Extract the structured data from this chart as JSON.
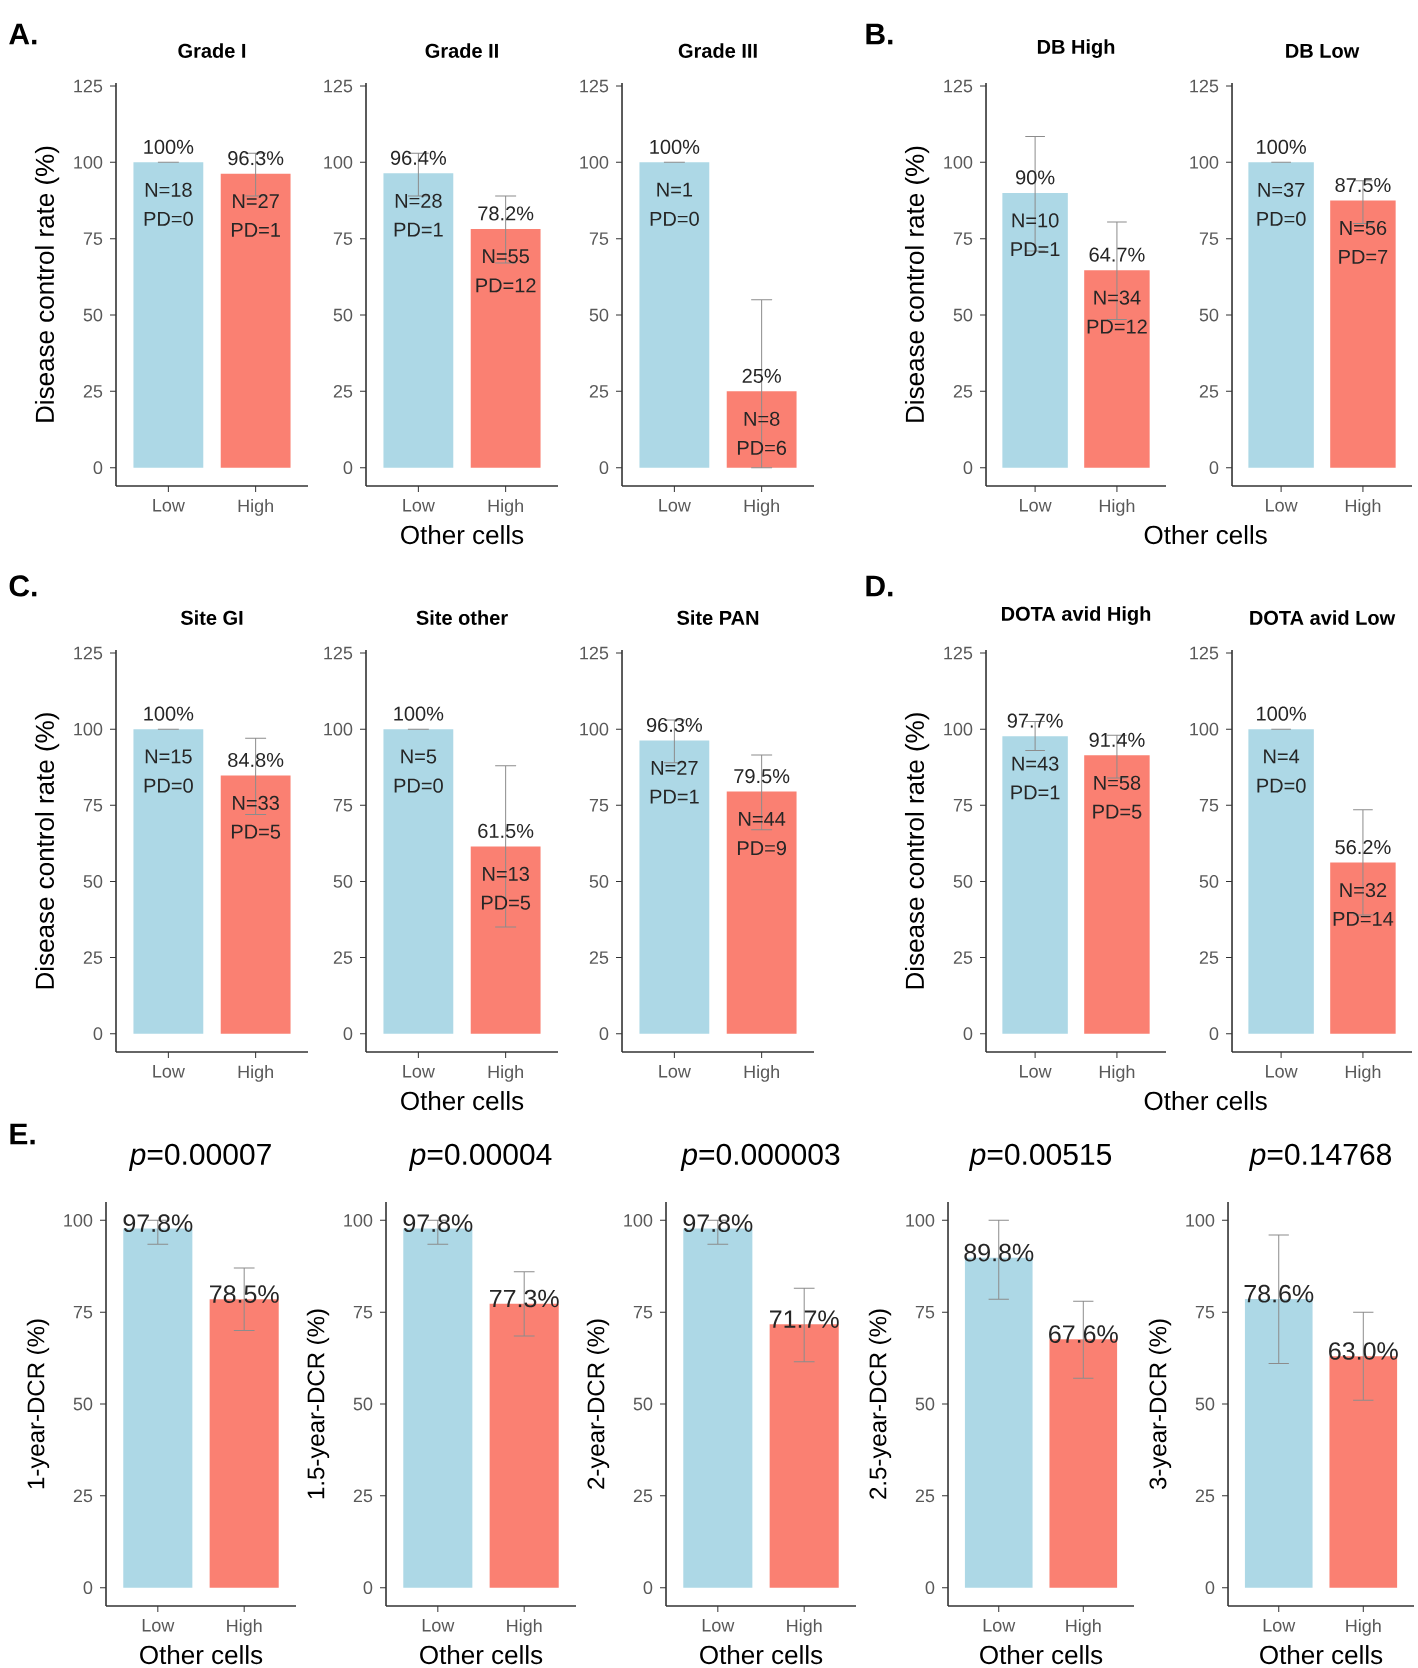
{
  "chart_data": [
    {
      "type": "bar",
      "title": "Grade I",
      "ylabel": "Disease control rate (%)",
      "categories": [
        "Low",
        "High"
      ],
      "values": [
        100,
        96.3
      ],
      "colors": [
        "#add8e6",
        "#fa8072"
      ],
      "errors": [
        [
          100,
          100
        ],
        [
          89,
          103
        ]
      ],
      "value_labels": [
        "100%",
        "96.3%"
      ],
      "ylim": [
        -6,
        126
      ],
      "yticks": [
        0,
        25,
        50,
        75,
        100,
        125
      ],
      "annotations": [
        "A.",
        {
          "text": "N=18",
          "x": "Low",
          "y": 100
        },
        {
          "text": "PD=0",
          "x": "Low",
          "y": 100
        },
        {
          "text": "N=27",
          "x": "High",
          "y": 96.3
        },
        {
          "text": "PD=1",
          "x": "High",
          "y": 96.3
        }
      ]
    },
    {
      "type": "bar",
      "title": "Grade II",
      "xlabel": "Other cells",
      "categories": [
        "Low",
        "High"
      ],
      "values": [
        96.4,
        78.2
      ],
      "colors": [
        "#add8e6",
        "#fa8072"
      ],
      "errors": [
        [
          89,
          103
        ],
        [
          67,
          89
        ]
      ],
      "value_labels": [
        "96.4%",
        "78.2%"
      ],
      "ylim": [
        -6,
        126
      ],
      "yticks": [
        0,
        25,
        50,
        75,
        100,
        125
      ],
      "annotations": [
        {
          "text": "N=28",
          "x": "Low",
          "y": 96.4
        },
        {
          "text": "PD=1",
          "x": "Low",
          "y": 96.4
        },
        {
          "text": "N=55",
          "x": "High",
          "y": 78.2
        },
        {
          "text": "PD=12",
          "x": "High",
          "y": 78.2
        }
      ]
    },
    {
      "type": "bar",
      "title": "Grade III",
      "categories": [
        "Low",
        "High"
      ],
      "values": [
        100,
        25
      ],
      "colors": [
        "#add8e6",
        "#fa8072"
      ],
      "errors": [
        [
          100,
          100
        ],
        [
          0,
          55
        ]
      ],
      "value_labels": [
        "100%",
        "25%"
      ],
      "ylim": [
        -6,
        126
      ],
      "yticks": [
        0,
        25,
        50,
        75,
        100,
        125
      ],
      "annotations": [
        {
          "text": "N=1",
          "x": "Low",
          "y": 100
        },
        {
          "text": "PD=0",
          "x": "Low",
          "y": 100
        },
        {
          "text": "N=8",
          "x": "High",
          "y": 25
        },
        {
          "text": "PD=6",
          "x": "High",
          "y": 25
        }
      ]
    },
    {
      "type": "bar",
      "title": "DB High",
      "ylabel": "Disease control rate (%)",
      "xlabel": "Other cells",
      "categories": [
        "Low",
        "High"
      ],
      "values": [
        90,
        64.7
      ],
      "colors": [
        "#add8e6",
        "#fa8072"
      ],
      "errors": [
        [
          71,
          108.5
        ],
        [
          48.5,
          80.5
        ]
      ],
      "value_labels": [
        "90%",
        "64.7%"
      ],
      "ylim": [
        -6,
        126
      ],
      "yticks": [
        0,
        25,
        50,
        75,
        100,
        125
      ],
      "annotations": [
        "B.",
        {
          "text": "N=10",
          "x": "Low",
          "y": 90
        },
        {
          "text": "PD=1",
          "x": "Low",
          "y": 90
        },
        {
          "text": "N=34",
          "x": "High",
          "y": 64.7
        },
        {
          "text": "PD=12",
          "x": "High",
          "y": 64.7
        }
      ]
    },
    {
      "type": "bar",
      "title": "DB Low",
      "categories": [
        "Low",
        "High"
      ],
      "values": [
        100,
        87.5
      ],
      "colors": [
        "#add8e6",
        "#fa8072"
      ],
      "errors": [
        [
          100,
          100
        ],
        [
          80,
          94
        ]
      ],
      "value_labels": [
        "100%",
        "87.5%"
      ],
      "ylim": [
        -6,
        126
      ],
      "yticks": [
        0,
        25,
        50,
        75,
        100,
        125
      ],
      "annotations": [
        {
          "text": "N=37",
          "x": "Low",
          "y": 100
        },
        {
          "text": "PD=0",
          "x": "Low",
          "y": 100
        },
        {
          "text": "N=56",
          "x": "High",
          "y": 87.5
        },
        {
          "text": "PD=7",
          "x": "High",
          "y": 87.5
        }
      ]
    },
    {
      "type": "bar",
      "title": "Site GI",
      "ylabel": "Disease control rate (%)",
      "categories": [
        "Low",
        "High"
      ],
      "values": [
        100,
        84.8
      ],
      "colors": [
        "#add8e6",
        "#fa8072"
      ],
      "errors": [
        [
          100,
          100
        ],
        [
          72,
          97
        ]
      ],
      "value_labels": [
        "100%",
        "84.8%"
      ],
      "ylim": [
        -6,
        126
      ],
      "yticks": [
        0,
        25,
        50,
        75,
        100,
        125
      ],
      "annotations": [
        "C.",
        {
          "text": "N=15",
          "x": "Low",
          "y": 100
        },
        {
          "text": "PD=0",
          "x": "Low",
          "y": 100
        },
        {
          "text": "N=33",
          "x": "High",
          "y": 84.8
        },
        {
          "text": "PD=5",
          "x": "High",
          "y": 84.8
        }
      ]
    },
    {
      "type": "bar",
      "title": "Site other",
      "xlabel": "Other cells",
      "categories": [
        "Low",
        "High"
      ],
      "values": [
        100,
        61.5
      ],
      "colors": [
        "#add8e6",
        "#fa8072"
      ],
      "errors": [
        [
          100,
          100
        ],
        [
          35,
          88
        ]
      ],
      "value_labels": [
        "100%",
        "61.5%"
      ],
      "ylim": [
        -6,
        126
      ],
      "yticks": [
        0,
        25,
        50,
        75,
        100,
        125
      ],
      "annotations": [
        {
          "text": "N=5",
          "x": "Low",
          "y": 100
        },
        {
          "text": "PD=0",
          "x": "Low",
          "y": 100
        },
        {
          "text": "N=13",
          "x": "High",
          "y": 61.5
        },
        {
          "text": "PD=5",
          "x": "High",
          "y": 61.5
        }
      ]
    },
    {
      "type": "bar",
      "title": "Site PAN",
      "categories": [
        "Low",
        "High"
      ],
      "values": [
        96.3,
        79.5
      ],
      "colors": [
        "#add8e6",
        "#fa8072"
      ],
      "errors": [
        [
          89,
          103
        ],
        [
          67,
          91.5
        ]
      ],
      "value_labels": [
        "96.3%",
        "79.5%"
      ],
      "ylim": [
        -6,
        126
      ],
      "yticks": [
        0,
        25,
        50,
        75,
        100,
        125
      ],
      "annotations": [
        {
          "text": "N=27",
          "x": "Low",
          "y": 96.3
        },
        {
          "text": "PD=1",
          "x": "Low",
          "y": 96.3
        },
        {
          "text": "N=44",
          "x": "High",
          "y": 79.5
        },
        {
          "text": "PD=9",
          "x": "High",
          "y": 79.5
        }
      ]
    },
    {
      "type": "bar",
      "title": "DOTA avid High",
      "ylabel": "Disease control rate (%)",
      "xlabel": "Other cells",
      "categories": [
        "Low",
        "High"
      ],
      "values": [
        97.7,
        91.4
      ],
      "colors": [
        "#add8e6",
        "#fa8072"
      ],
      "errors": [
        [
          93,
          102.5
        ],
        [
          84,
          98
        ]
      ],
      "value_labels": [
        "97.7%",
        "91.4%"
      ],
      "ylim": [
        -6,
        126
      ],
      "yticks": [
        0,
        25,
        50,
        75,
        100,
        125
      ],
      "annotations": [
        "D.",
        {
          "text": "N=43",
          "x": "Low",
          "y": 97.7
        },
        {
          "text": "PD=1",
          "x": "Low",
          "y": 97.7
        },
        {
          "text": "N=58",
          "x": "High",
          "y": 91.4
        },
        {
          "text": "PD=5",
          "x": "High",
          "y": 91.4
        }
      ]
    },
    {
      "type": "bar",
      "title": "DOTA avid Low",
      "categories": [
        "Low",
        "High"
      ],
      "values": [
        100,
        56.2
      ],
      "colors": [
        "#add8e6",
        "#fa8072"
      ],
      "errors": [
        [
          100,
          100
        ],
        [
          39,
          73.5
        ]
      ],
      "value_labels": [
        "100%",
        "56.2%"
      ],
      "ylim": [
        -6,
        126
      ],
      "yticks": [
        0,
        25,
        50,
        75,
        100,
        125
      ],
      "annotations": [
        {
          "text": "N=4",
          "x": "Low",
          "y": 100
        },
        {
          "text": "PD=0",
          "x": "Low",
          "y": 100
        },
        {
          "text": "N=32",
          "x": "High",
          "y": 56.2
        },
        {
          "text": "PD=14",
          "x": "High",
          "y": 56.2
        }
      ]
    },
    {
      "type": "bar",
      "title": "*p*=0.00007",
      "ylabel": "1-year-DCR (%)",
      "xlabel": "Other cells",
      "categories": [
        "Low",
        "High"
      ],
      "values": [
        97.8,
        78.5
      ],
      "colors": [
        "#add8e6",
        "#fa8072"
      ],
      "errors": [
        [
          93.5,
          100
        ],
        [
          70,
          87
        ]
      ],
      "value_labels": [
        "97.8%",
        "78.5%"
      ],
      "ylim": [
        -5,
        105
      ],
      "yticks": [
        0,
        25,
        50,
        75,
        100
      ],
      "annotations": [
        "E."
      ]
    },
    {
      "type": "bar",
      "title": "*p*=0.00004",
      "ylabel": "1.5-year-DCR (%)",
      "xlabel": "Other cells",
      "categories": [
        "Low",
        "High"
      ],
      "values": [
        97.8,
        77.3
      ],
      "colors": [
        "#add8e6",
        "#fa8072"
      ],
      "errors": [
        [
          93.5,
          100
        ],
        [
          68.5,
          86
        ]
      ],
      "value_labels": [
        "97.8%",
        "77.3%"
      ],
      "ylim": [
        -5,
        105
      ],
      "yticks": [
        0,
        25,
        50,
        75,
        100
      ]
    },
    {
      "type": "bar",
      "title": "*p*=0.000003",
      "ylabel": "2-year-DCR (%)",
      "xlabel": "Other cells",
      "categories": [
        "Low",
        "High"
      ],
      "values": [
        97.8,
        71.7
      ],
      "colors": [
        "#add8e6",
        "#fa8072"
      ],
      "errors": [
        [
          93.5,
          100
        ],
        [
          61.5,
          81.5
        ]
      ],
      "value_labels": [
        "97.8%",
        "71.7%"
      ],
      "ylim": [
        -5,
        105
      ],
      "yticks": [
        0,
        25,
        50,
        75,
        100
      ]
    },
    {
      "type": "bar",
      "title": "*p*=0.00515",
      "ylabel": "2.5-year-DCR (%)",
      "xlabel": "Other cells",
      "categories": [
        "Low",
        "High"
      ],
      "values": [
        89.8,
        67.6
      ],
      "colors": [
        "#add8e6",
        "#fa8072"
      ],
      "errors": [
        [
          78.5,
          100
        ],
        [
          57,
          78
        ]
      ],
      "value_labels": [
        "89.8%",
        "67.6%"
      ],
      "ylim": [
        -5,
        105
      ],
      "yticks": [
        0,
        25,
        50,
        75,
        100
      ]
    },
    {
      "type": "bar",
      "title": "*p*=0.14768",
      "ylabel": "3-year-DCR (%)",
      "xlabel": "Other cells",
      "categories": [
        "Low",
        "High"
      ],
      "values": [
        78.6,
        63.0
      ],
      "colors": [
        "#add8e6",
        "#fa8072"
      ],
      "errors": [
        [
          61,
          96
        ],
        [
          51,
          75
        ]
      ],
      "value_labels": [
        "78.6%",
        "63.0%"
      ],
      "ylim": [
        -5,
        105
      ],
      "yticks": [
        0,
        25,
        50,
        75,
        100
      ]
    }
  ]
}
